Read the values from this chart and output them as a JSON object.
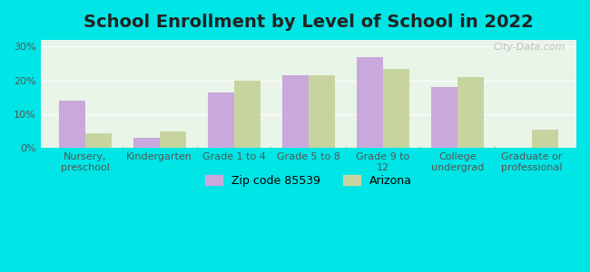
{
  "title": "School Enrollment by Level of School in 2022",
  "categories": [
    "Nursery,\npreschool",
    "Kindergarten",
    "Grade 1 to 4",
    "Grade 5 to 8",
    "Grade 9 to\n12",
    "College\nundergrad",
    "Graduate or\nprofessional"
  ],
  "zip_values": [
    14.0,
    3.0,
    16.5,
    21.5,
    27.0,
    18.0,
    0.0
  ],
  "az_values": [
    4.5,
    5.0,
    20.0,
    21.5,
    23.5,
    21.0,
    5.5
  ],
  "zip_color": "#c9a8dc",
  "az_color": "#c8d4a0",
  "background_outer": "#00e5e5",
  "background_inner": "#e8f5e8",
  "ylabel_ticks": [
    "0%",
    "10%",
    "20%",
    "30%"
  ],
  "ytick_vals": [
    0,
    10,
    20,
    30
  ],
  "ylim": [
    0,
    32
  ],
  "legend_zip_label": "Zip code 85539",
  "legend_az_label": "Arizona",
  "watermark": "City-Data.com",
  "title_fontsize": 14,
  "tick_fontsize": 8,
  "legend_fontsize": 9
}
